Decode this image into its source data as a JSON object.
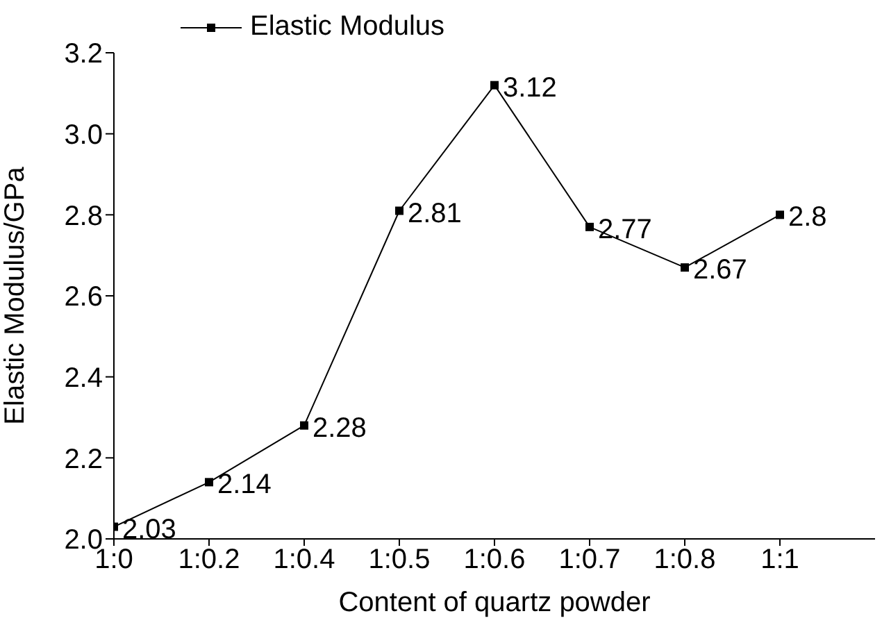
{
  "chart_data": {
    "type": "line",
    "xlabel": "Content of quartz powder",
    "ylabel": "Elastic Modulus/GPa",
    "categories": [
      "1:0",
      "1:0.2",
      "1:0.4",
      "1:0.5",
      "1:0.6",
      "1:0.7",
      "1:0.8",
      "1:1"
    ],
    "series": [
      {
        "name": "Elastic Modulus",
        "color": "#000000",
        "values": [
          2.03,
          2.14,
          2.28,
          2.81,
          3.12,
          2.77,
          2.67,
          2.8
        ]
      }
    ],
    "ylim": [
      2.0,
      3.2
    ],
    "yticks": [
      {
        "value": 2.0,
        "label": "2.0"
      },
      {
        "value": 2.2,
        "label": "2.2"
      },
      {
        "value": 2.4,
        "label": "2.4"
      },
      {
        "value": 2.6,
        "label": "2.6"
      },
      {
        "value": 2.8,
        "label": "2.8"
      },
      {
        "value": 3.0,
        "label": "3.0"
      },
      {
        "value": 3.2,
        "label": "3.2"
      }
    ],
    "marker": "square",
    "line_style": "solid",
    "legend": "top",
    "data_labels": true,
    "grid": false
  }
}
